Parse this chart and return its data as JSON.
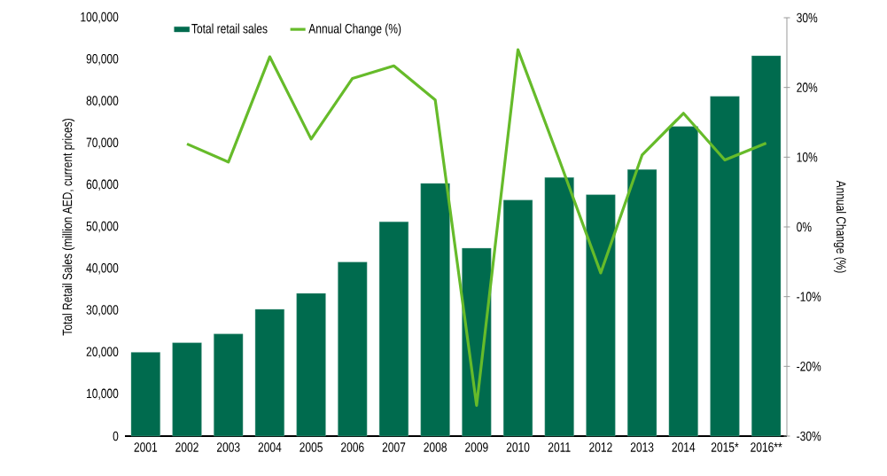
{
  "chart_data": {
    "type": "bar",
    "categories": [
      "2001",
      "2002",
      "2003",
      "2004",
      "2005",
      "2006",
      "2007",
      "2008",
      "2009",
      "2010",
      "2011",
      "2012",
      "2013",
      "2014",
      "2015*",
      "2016**"
    ],
    "series": [
      {
        "name": "Total retail sales",
        "color": "#006b4e",
        "values": [
          20000,
          22300,
          24400,
          30300,
          34100,
          41600,
          51200,
          60400,
          44900,
          56400,
          61800,
          57700,
          63700,
          74000,
          81200,
          90900
        ]
      },
      {
        "name": "Annual Change (%)",
        "type": "line",
        "axis": "y2",
        "color": "#66bb2a",
        "line_style": "solid",
        "values": [
          null,
          11.9,
          9.3,
          24.4,
          12.6,
          21.3,
          23.1,
          18.2,
          -25.6,
          25.4,
          9.6,
          -6.6,
          10.3,
          16.3,
          9.6,
          12.0
        ]
      }
    ],
    "ylabel": "Total Retail Sales (million AED, current prices)",
    "y2label": "Annual Change (%)",
    "ylim": [
      0,
      100000
    ],
    "yticks": [
      0,
      {
        "value": 10000,
        "label": "10,000"
      },
      {
        "value": 20000,
        "label": "20,000"
      },
      {
        "value": 30000,
        "label": "30,000"
      },
      {
        "value": 40000,
        "label": "40,000"
      },
      {
        "value": 50000,
        "label": "50,000"
      },
      {
        "value": 60000,
        "label": "60,000"
      },
      {
        "value": 70000,
        "label": "70,000"
      },
      {
        "value": 80000,
        "label": "80,000"
      },
      {
        "value": 90000,
        "label": "90,000"
      },
      {
        "value": 100000,
        "label": "100,000"
      }
    ],
    "y2lim": [
      -30,
      30
    ],
    "y2ticks": [
      {
        "value": -30,
        "label": "-30%"
      },
      {
        "value": -20,
        "label": "-20%"
      },
      {
        "value": -10,
        "label": "-10%"
      },
      {
        "value": 0,
        "label": "0%"
      },
      {
        "value": 10,
        "label": "10%"
      },
      {
        "value": 20,
        "label": "20%"
      },
      {
        "value": 30,
        "label": "30%"
      }
    ],
    "legend": "top left",
    "grid": false
  }
}
